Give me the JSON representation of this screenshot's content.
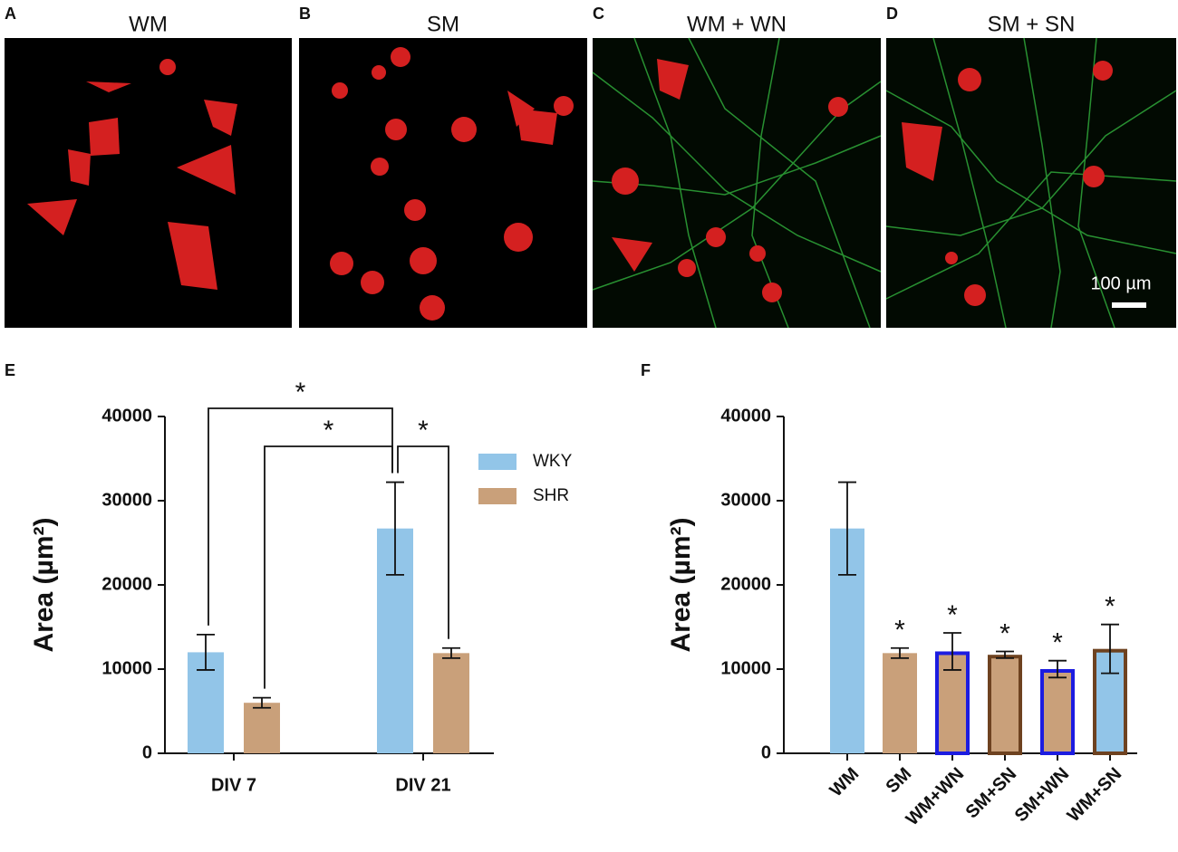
{
  "image_panels": [
    {
      "letter": "A",
      "title": "WM"
    },
    {
      "letter": "B",
      "title": "SM"
    },
    {
      "letter": "C",
      "title": "WM + WN"
    },
    {
      "letter": "D",
      "title": "SM + SN"
    }
  ],
  "scale_bar": "100 µm",
  "chart_data": [
    {
      "letter": "E",
      "type": "bar",
      "ylabel": "Area (µm²)",
      "categories": [
        "DIV 7",
        "DIV 21"
      ],
      "series": [
        {
          "name": "WKY",
          "color": "#92c5e8",
          "values": [
            12000,
            26700
          ],
          "errors": [
            2100,
            5500
          ]
        },
        {
          "name": "SHR",
          "color": "#c9a07a",
          "values": [
            6000,
            11900
          ],
          "errors": [
            600,
            600
          ]
        }
      ],
      "ylim": [
        0,
        40000
      ],
      "yticks": [
        0,
        10000,
        20000,
        30000,
        40000
      ],
      "legend": "right",
      "significance": [
        {
          "label": "*",
          "from": [
            0,
            0
          ],
          "to": [
            1,
            0
          ]
        },
        {
          "label": "*",
          "from": [
            0,
            1
          ],
          "to": [
            1,
            0
          ]
        },
        {
          "label": "*",
          "from": [
            1,
            0
          ],
          "to": [
            1,
            1
          ]
        }
      ]
    },
    {
      "letter": "F",
      "type": "bar",
      "ylabel": "Area (µm²)",
      "categories": [
        "WM",
        "SM",
        "WM+WN",
        "SM+SN",
        "SM+WN",
        "WM+SN"
      ],
      "values": [
        26700,
        11900,
        12100,
        11700,
        10000,
        12400
      ],
      "errors": [
        5500,
        600,
        2200,
        400,
        1000,
        2900
      ],
      "colors": [
        "#92c5e8",
        "#c9a07a",
        "#c9a07a",
        "#c9a07a",
        "#c9a07a",
        "#92c5e8"
      ],
      "edge_colors": [
        null,
        null,
        "#1c1ce0",
        "#6e4220",
        "#1c1ce0",
        "#6e4220"
      ],
      "ylim": [
        0,
        40000
      ],
      "yticks": [
        0,
        10000,
        20000,
        30000,
        40000
      ],
      "annotations": [
        {
          "category": 1,
          "label": "*"
        },
        {
          "category": 2,
          "label": "*"
        },
        {
          "category": 3,
          "label": "*"
        },
        {
          "category": 4,
          "label": "*"
        },
        {
          "category": 5,
          "label": "*"
        }
      ]
    }
  ]
}
